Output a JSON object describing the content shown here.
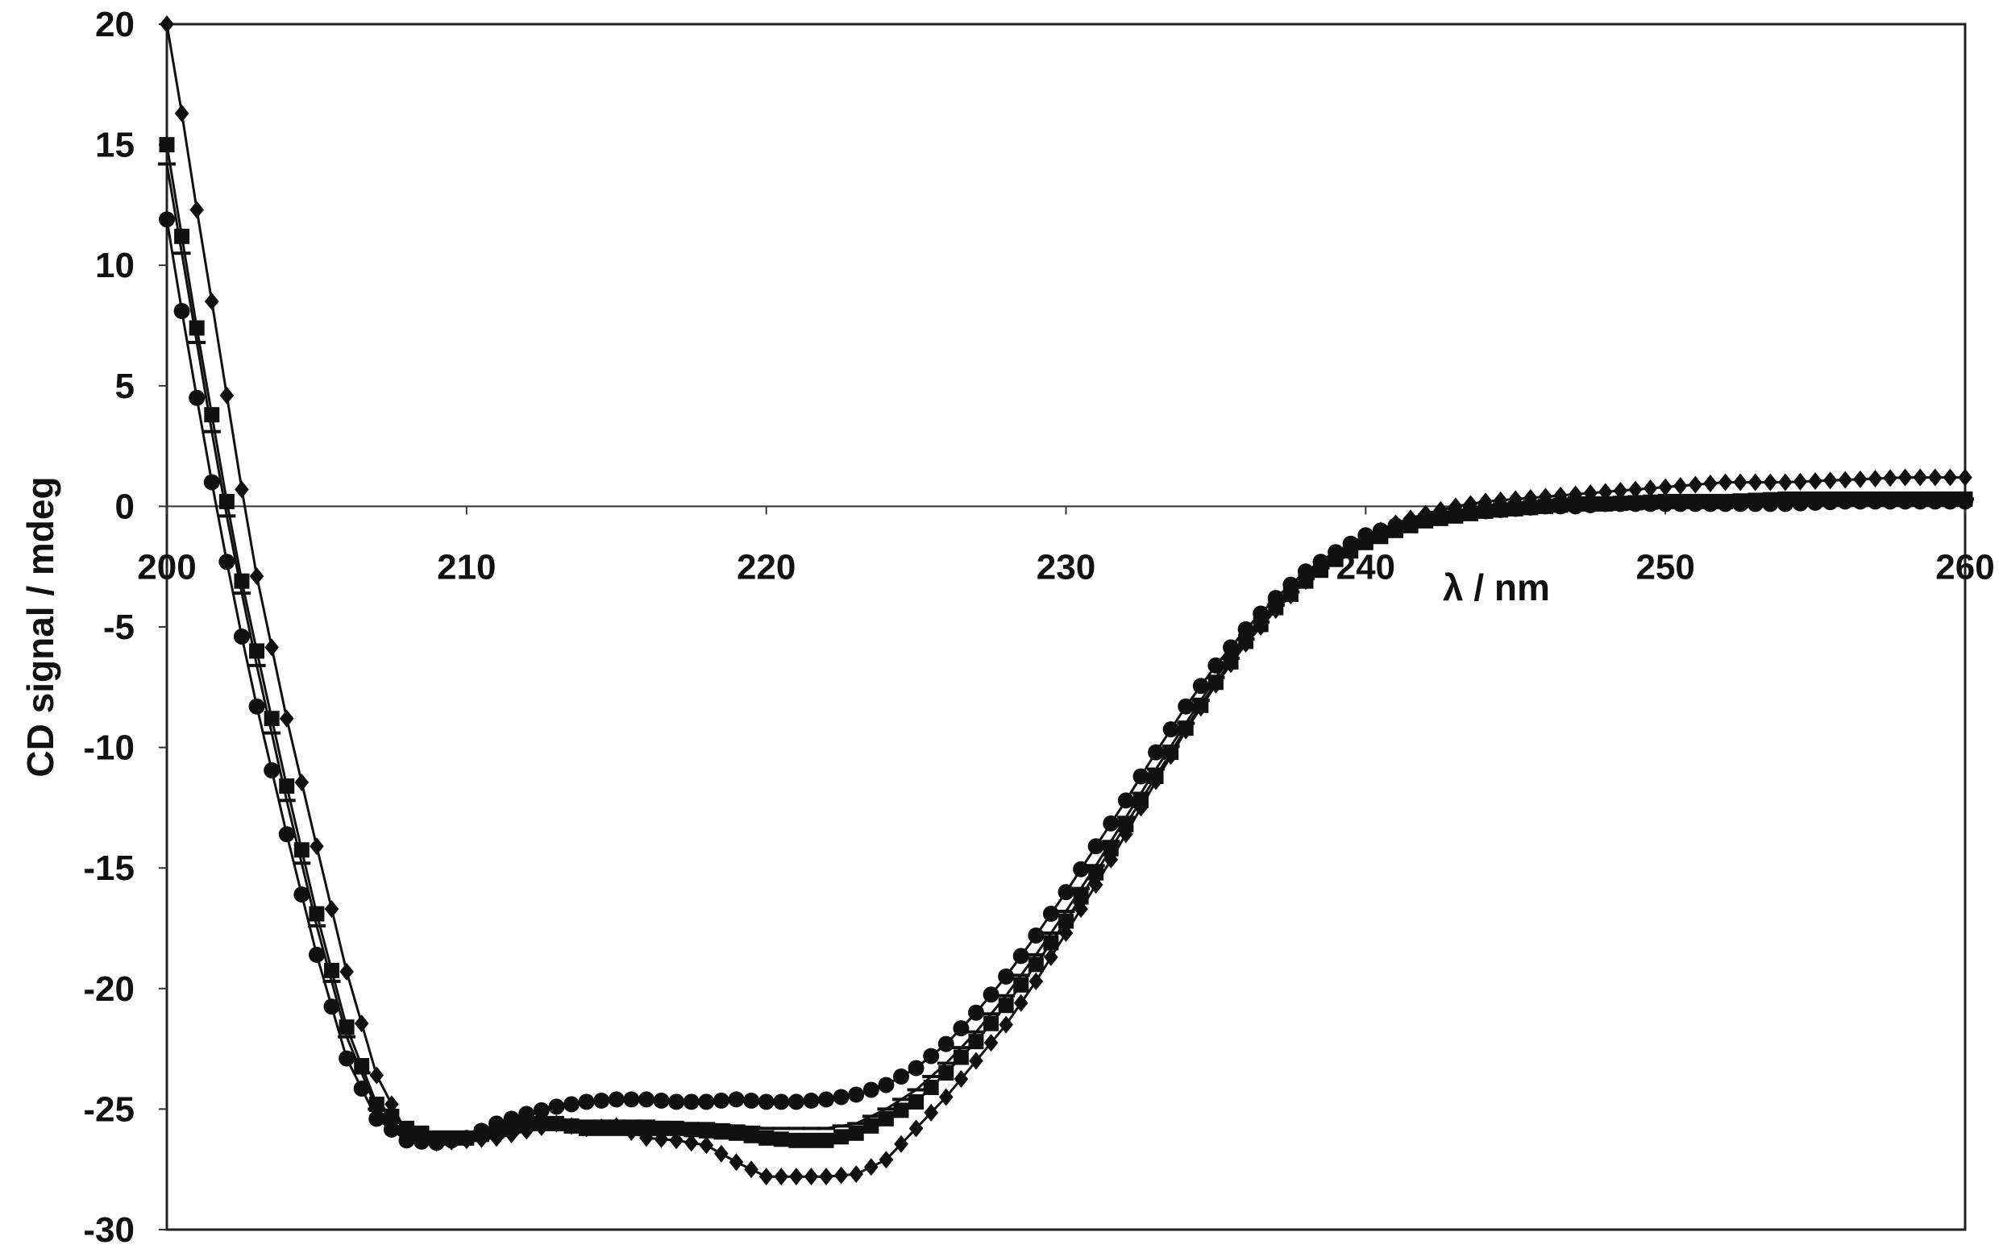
{
  "chart_data": {
    "type": "line",
    "title": "",
    "xlabel": "λ / nm",
    "ylabel": "CD signal / mdeg",
    "xlim": [
      200,
      260
    ],
    "ylim": [
      -30,
      20
    ],
    "xticks": [
      "200",
      "210",
      "220",
      "230",
      "240",
      "250",
      "260"
    ],
    "yticks": [
      "20",
      "15",
      "10",
      "5",
      "0",
      "-5",
      "-10",
      "-15",
      "-20",
      "-25",
      "-30"
    ],
    "grid": false,
    "legend": "none",
    "series": [
      {
        "marker": "diamond",
        "x": [
          200,
          200.5,
          201,
          201.5,
          202,
          202.5,
          203,
          204,
          205,
          206,
          207,
          208,
          209,
          210,
          211,
          212,
          213,
          214,
          215,
          216,
          217,
          218,
          219,
          220,
          221,
          222,
          223,
          224,
          225,
          226,
          227,
          228,
          229,
          230,
          231,
          232,
          233,
          234,
          235,
          236,
          237,
          238,
          239,
          240,
          241,
          242,
          243,
          244,
          245,
          246,
          247,
          248,
          250,
          252,
          254,
          256,
          258,
          260
        ],
        "y": [
          20,
          16.3,
          12.3,
          8.5,
          4.6,
          0.7,
          -2.9,
          -8.8,
          -14.1,
          -19.3,
          -23.6,
          -26.0,
          -26.4,
          -26.3,
          -26.2,
          -25.9,
          -25.6,
          -25.8,
          -25.7,
          -26.2,
          -26.3,
          -26.5,
          -27.2,
          -27.8,
          -27.8,
          -27.8,
          -27.7,
          -27.1,
          -25.8,
          -24.5,
          -23.0,
          -21.5,
          -19.7,
          -17.7,
          -15.7,
          -13.6,
          -11.4,
          -9.3,
          -7.4,
          -5.7,
          -4.3,
          -3.1,
          -2.1,
          -1.3,
          -0.7,
          -0.3,
          0.0,
          0.2,
          0.3,
          0.4,
          0.5,
          0.6,
          0.8,
          1.0,
          1.0,
          1.1,
          1.2,
          1.2
        ]
      },
      {
        "marker": "square",
        "x": [
          200,
          200.5,
          201,
          201.5,
          202,
          202.5,
          203,
          204,
          205,
          206,
          207,
          208,
          209,
          210,
          211,
          212,
          213,
          214,
          215,
          216,
          217,
          218,
          219,
          220,
          221,
          222,
          223,
          224,
          225,
          226,
          227,
          228,
          229,
          230,
          231,
          232,
          233,
          234,
          235,
          236,
          237,
          238,
          239,
          240,
          241,
          242,
          243,
          244,
          245,
          246,
          247,
          248,
          250,
          252,
          254,
          256,
          258,
          260
        ],
        "y": [
          15,
          11.2,
          7.4,
          3.8,
          0.2,
          -3.1,
          -6.0,
          -11.6,
          -16.9,
          -21.6,
          -24.8,
          -25.8,
          -26.2,
          -26.2,
          -25.9,
          -25.6,
          -25.6,
          -25.8,
          -25.8,
          -25.8,
          -25.8,
          -25.9,
          -26.0,
          -26.2,
          -26.3,
          -26.3,
          -26.0,
          -25.4,
          -24.7,
          -23.5,
          -22.2,
          -20.7,
          -19.0,
          -17.2,
          -15.2,
          -13.2,
          -11.2,
          -9.2,
          -7.3,
          -5.6,
          -4.2,
          -3.1,
          -2.2,
          -1.5,
          -1.0,
          -0.6,
          -0.4,
          -0.2,
          -0.1,
          0.0,
          0.1,
          0.1,
          0.2,
          0.2,
          0.3,
          0.3,
          0.3,
          0.3
        ]
      },
      {
        "marker": "dash",
        "x": [
          200,
          200.5,
          201,
          201.5,
          202,
          202.5,
          203,
          204,
          205,
          206,
          207,
          208,
          209,
          210,
          211,
          212,
          213,
          214,
          215,
          216,
          217,
          218,
          219,
          220,
          221,
          222,
          223,
          224,
          225,
          226,
          227,
          228,
          229,
          230,
          231,
          232,
          233,
          234,
          235,
          236,
          237,
          238,
          239,
          240,
          241,
          242,
          243,
          244,
          245,
          246,
          247,
          248,
          250,
          252,
          254,
          256,
          258,
          260
        ],
        "y": [
          14.2,
          10.5,
          6.8,
          3.1,
          -0.4,
          -3.6,
          -6.6,
          -12.2,
          -17.4,
          -22.0,
          -25.0,
          -26.0,
          -26.4,
          -26.3,
          -26.0,
          -25.8,
          -25.6,
          -25.5,
          -25.5,
          -25.5,
          -25.6,
          -25.6,
          -25.7,
          -25.8,
          -25.8,
          -25.8,
          -25.6,
          -25.0,
          -24.2,
          -23.1,
          -21.8,
          -20.3,
          -18.6,
          -16.8,
          -14.9,
          -12.9,
          -10.9,
          -9.0,
          -7.1,
          -5.5,
          -4.1,
          -3.0,
          -2.1,
          -1.4,
          -0.9,
          -0.5,
          -0.3,
          -0.2,
          -0.1,
          0.0,
          0.0,
          0.1,
          0.1,
          0.2,
          0.2,
          0.2,
          0.3,
          0.3
        ]
      },
      {
        "marker": "circle",
        "x": [
          200,
          200.5,
          201,
          201.5,
          202,
          202.5,
          203,
          204,
          205,
          206,
          207,
          208,
          209,
          210,
          211,
          212,
          213,
          214,
          215,
          216,
          217,
          218,
          219,
          220,
          221,
          222,
          223,
          224,
          225,
          226,
          227,
          228,
          229,
          230,
          231,
          232,
          233,
          234,
          235,
          236,
          237,
          238,
          239,
          240,
          241,
          242,
          243,
          244,
          245,
          246,
          247,
          248,
          250,
          252,
          254,
          256,
          258,
          260
        ],
        "y": [
          11.9,
          8.1,
          4.5,
          1.0,
          -2.3,
          -5.4,
          -8.3,
          -13.6,
          -18.6,
          -22.9,
          -25.4,
          -26.3,
          -26.4,
          -26.2,
          -25.6,
          -25.2,
          -24.9,
          -24.7,
          -24.6,
          -24.6,
          -24.7,
          -24.7,
          -24.6,
          -24.7,
          -24.7,
          -24.6,
          -24.4,
          -24.0,
          -23.3,
          -22.3,
          -21.0,
          -19.5,
          -17.8,
          -16.0,
          -14.1,
          -12.2,
          -10.2,
          -8.3,
          -6.6,
          -5.1,
          -3.8,
          -2.7,
          -1.9,
          -1.2,
          -0.8,
          -0.5,
          -0.3,
          -0.2,
          -0.1,
          0.0,
          0.0,
          0.1,
          0.1,
          0.1,
          0.1,
          0.2,
          0.2,
          0.2
        ]
      }
    ]
  }
}
